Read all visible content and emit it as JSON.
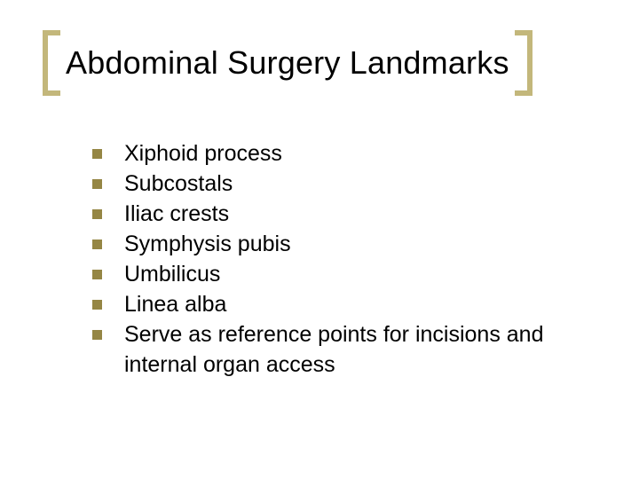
{
  "title": "Abdominal Surgery Landmarks",
  "title_fontsize": 36,
  "title_color": "#000000",
  "background_color": "#ffffff",
  "bracket": {
    "stroke": "#c3b77b",
    "width": 22,
    "height": 74,
    "stroke_width": 6
  },
  "bullet": {
    "size": 11,
    "color": "#958644"
  },
  "items": [
    "Xiphoid process",
    "Subcostals",
    "Iliac crests",
    "Symphysis pubis",
    "Umbilicus",
    "Linea alba",
    "Serve as reference points for incisions and internal organ access"
  ],
  "item_fontsize": 25,
  "item_color": "#000000"
}
